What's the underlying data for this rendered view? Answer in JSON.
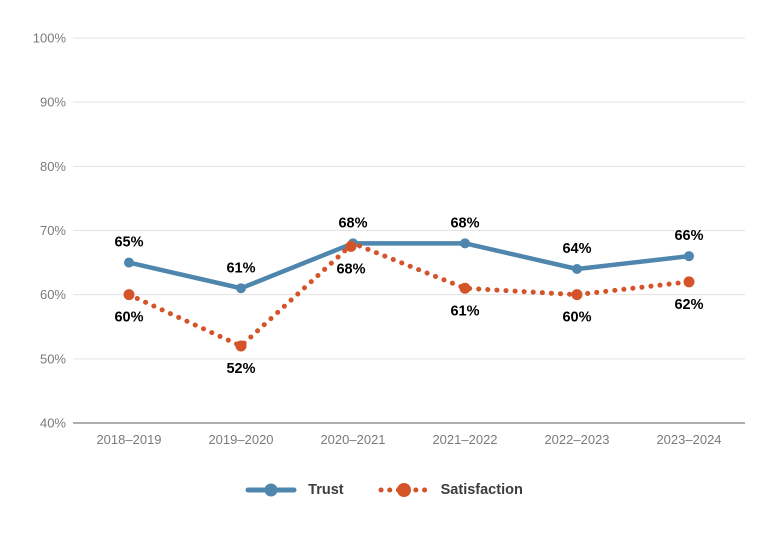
{
  "chart_data": {
    "type": "line",
    "title": "",
    "xlabel": "",
    "ylabel": "",
    "categories": [
      "2018–2019",
      "2019–2020",
      "2020–2021",
      "2021–2022",
      "2022–2023",
      "2023–2024"
    ],
    "series": [
      {
        "name": "Trust",
        "values": [
          65,
          61,
          68,
          68,
          64,
          66
        ],
        "labels": [
          "65%",
          "61%",
          "68%",
          "68%",
          "64%",
          "66%"
        ],
        "color": "#4f86ae",
        "style": "solid",
        "label_position": "above"
      },
      {
        "name": "Satisfaction",
        "values": [
          60,
          52,
          68,
          61,
          60,
          62
        ],
        "labels": [
          "60%",
          "52%",
          "68%",
          "61%",
          "60%",
          "62%"
        ],
        "color": "#d4542a",
        "style": "dotted",
        "label_position": "below"
      }
    ],
    "ylim": [
      40,
      100
    ],
    "yticks": [
      40,
      50,
      60,
      70,
      80,
      90,
      100
    ],
    "ytick_labels": [
      "40%",
      "50%",
      "60%",
      "70%",
      "80%",
      "90%",
      "100%"
    ],
    "grid": true,
    "legend_position": "bottom"
  },
  "colors": {
    "gridline": "#e3e3e3",
    "axis_line": "#aeaeae",
    "tick_label": "#7a7a7a",
    "data_label": "#000000",
    "legend_text": "#3d3d3d",
    "background": "#ffffff"
  },
  "legend": {
    "items": [
      {
        "label": "Trust"
      },
      {
        "label": "Satisfaction"
      }
    ]
  }
}
